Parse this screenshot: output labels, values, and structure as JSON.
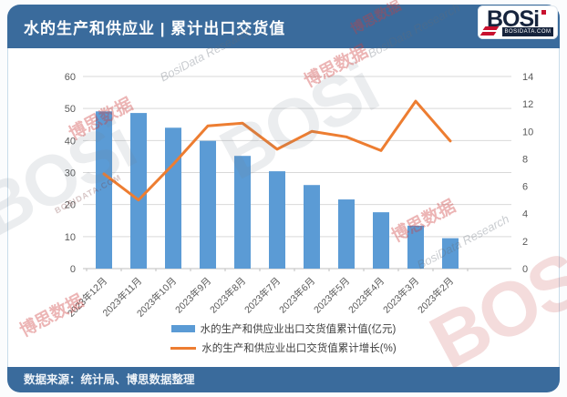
{
  "header": {
    "title": "水的生产和供应业 | 累计出口交货值",
    "logo": {
      "text": "BOSi",
      "site": "BOSIDATA.COM"
    }
  },
  "footer": {
    "source": "数据来源：统计局、博思数据整理"
  },
  "watermarks": {
    "brand": "BOSi",
    "cn": "博思数据",
    "script": "BosiData Research",
    "site": "BOSIDATA.COM"
  },
  "chart_data": {
    "type": "bar",
    "subtype": "combo-bar-line-dual-axis",
    "categories": [
      "2023年12月",
      "2023年11月",
      "2023年10月",
      "2023年9月",
      "2023年8月",
      "2023年7月",
      "2023年6月",
      "2023年5月",
      "2023年4月",
      "2023年3月",
      "2023年2月"
    ],
    "series": [
      {
        "name": "水的生产和供应业出口交货值累计值(亿元)",
        "type": "bar",
        "axis": "left",
        "color": "#5b9bd5",
        "values": [
          49.1,
          48.6,
          44.0,
          39.9,
          35.2,
          30.4,
          26.1,
          21.6,
          17.6,
          13.4,
          9.5
        ]
      },
      {
        "name": "水的生产和供应业出口交货值累计增长(%)",
        "type": "line",
        "axis": "right",
        "color": "#ed7d31",
        "values": [
          6.9,
          5.0,
          7.6,
          10.4,
          10.6,
          8.7,
          10.0,
          9.6,
          8.6,
          12.2,
          9.3
        ]
      }
    ],
    "left_axis": {
      "min": 0,
      "max": 60,
      "step": 10
    },
    "right_axis": {
      "min": 0,
      "max": 14,
      "step": 2
    },
    "grid": true,
    "legend_position": "bottom",
    "colors": {
      "header_blue": "#3a6b9c",
      "bar_blue": "#5b9bd5",
      "line_orange": "#ed7d31",
      "gridline": "#d9d9d9",
      "axis_text": "#595959",
      "logo_red": "#c8102e",
      "logo_navy": "#16243d"
    }
  }
}
